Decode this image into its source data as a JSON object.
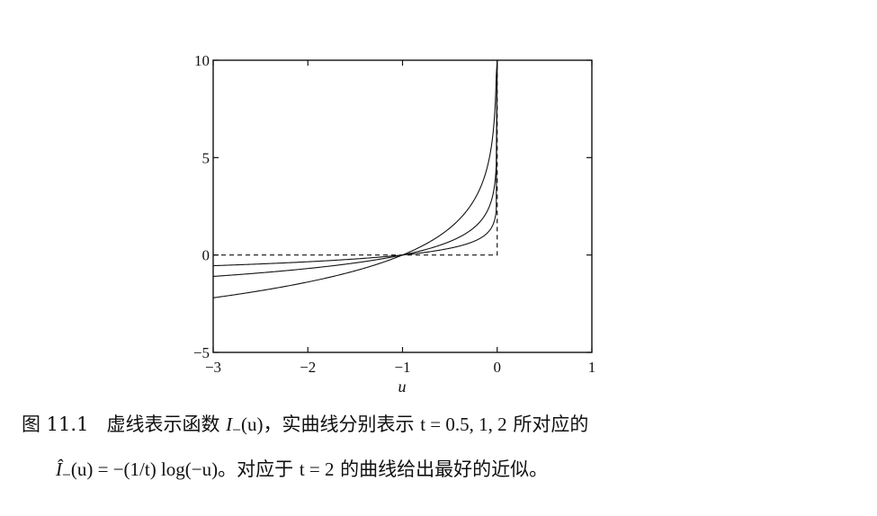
{
  "chart_data": {
    "type": "line",
    "xlabel": "u",
    "ylabel": "",
    "xlim": [
      -3,
      1
    ],
    "ylim": [
      -5,
      10
    ],
    "x_ticks": [
      -3,
      -2,
      -1,
      0,
      1
    ],
    "y_ticks": [
      -5,
      0,
      5,
      10
    ],
    "x_tick_labels": [
      "−3",
      "−2",
      "−1",
      "0",
      "1"
    ],
    "y_tick_labels": [
      "−5",
      "0",
      "5",
      "10"
    ],
    "grid": false,
    "legend": null,
    "dashed_series": {
      "style": "dashed",
      "x": [
        -3,
        0,
        0
      ],
      "y": [
        0,
        0,
        10
      ]
    },
    "series": [
      {
        "t": 0.5,
        "formula": "-(1/t)log(-u)",
        "x": [
          -3,
          -2,
          -1.5,
          -1,
          -0.5,
          -0.2,
          -0.1,
          -0.05,
          -0.02,
          -0.01
        ],
        "y": [
          -2.2,
          -1.39,
          -0.81,
          0,
          1.39,
          3.22,
          4.61,
          5.99,
          7.82,
          9.21
        ]
      },
      {
        "t": 1,
        "formula": "-(1/t)log(-u)",
        "x": [
          -3,
          -2,
          -1.5,
          -1,
          -0.5,
          -0.2,
          -0.1,
          -0.05,
          -0.02,
          -0.01
        ],
        "y": [
          -1.1,
          -0.69,
          -0.41,
          0,
          0.69,
          1.61,
          2.3,
          3.0,
          3.91,
          4.61
        ]
      },
      {
        "t": 2,
        "formula": "-(1/t)log(-u)",
        "x": [
          -3,
          -2,
          -1.5,
          -1,
          -0.5,
          -0.2,
          -0.1,
          -0.05,
          -0.02,
          -0.01
        ],
        "y": [
          -0.55,
          -0.35,
          -0.2,
          0,
          0.35,
          0.8,
          1.15,
          1.5,
          1.96,
          2.3
        ]
      }
    ]
  },
  "caption": {
    "fig_number": "图 11.1",
    "line1_text_a": "虚线表示函数 ",
    "line1_math_a": "I",
    "line1_math_a_sub": "−",
    "line1_math_a_arg": "(u)",
    "line1_text_b": "，实曲线分别表示 ",
    "line1_math_b": "t = 0.5, 1, 2",
    "line1_text_c": " 所对应的",
    "line2_math_hat": "Î",
    "line2_math_sub": "−",
    "line2_math_rest": "(u) = −(1/t) log(−u)",
    "line2_text_a": "。对应于 ",
    "line2_math_b": "t = 2",
    "line2_text_b": " 的曲线给出最好的近似。"
  }
}
